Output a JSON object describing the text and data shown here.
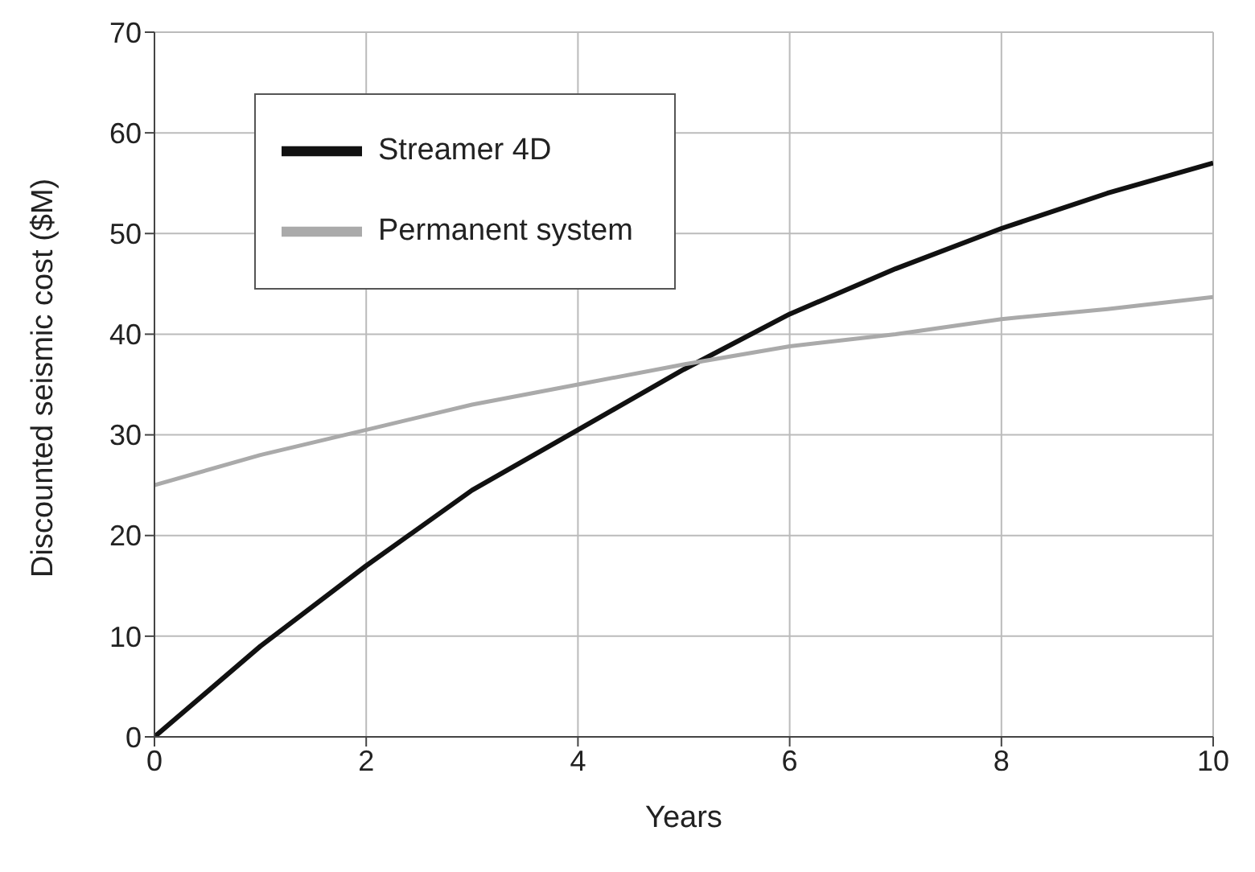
{
  "chart_data": {
    "type": "line",
    "xlabel": "Years",
    "ylabel": "Discounted seismic cost ($M)",
    "x": [
      0,
      1,
      2,
      3,
      4,
      5,
      6,
      7,
      8,
      9,
      10
    ],
    "series": [
      {
        "name": "Streamer 4D",
        "color": "#111111",
        "values": [
          0,
          9,
          17,
          24.5,
          30.5,
          36.5,
          42,
          46.5,
          50.5,
          54,
          57
        ]
      },
      {
        "name": "Permanent system",
        "color": "#aaaaaa",
        "values": [
          25,
          28,
          30.5,
          33,
          35,
          37,
          38.8,
          40,
          41.5,
          42.5,
          43.7
        ]
      }
    ],
    "xlim": [
      0,
      10
    ],
    "xticks": [
      0,
      2,
      4,
      6,
      8,
      10
    ],
    "ylim": [
      0,
      70
    ],
    "yticks": [
      0,
      10,
      20,
      30,
      40,
      50,
      60,
      70
    ],
    "grid": true,
    "legend": "top left",
    "marker": "none",
    "line_style": "solid"
  }
}
